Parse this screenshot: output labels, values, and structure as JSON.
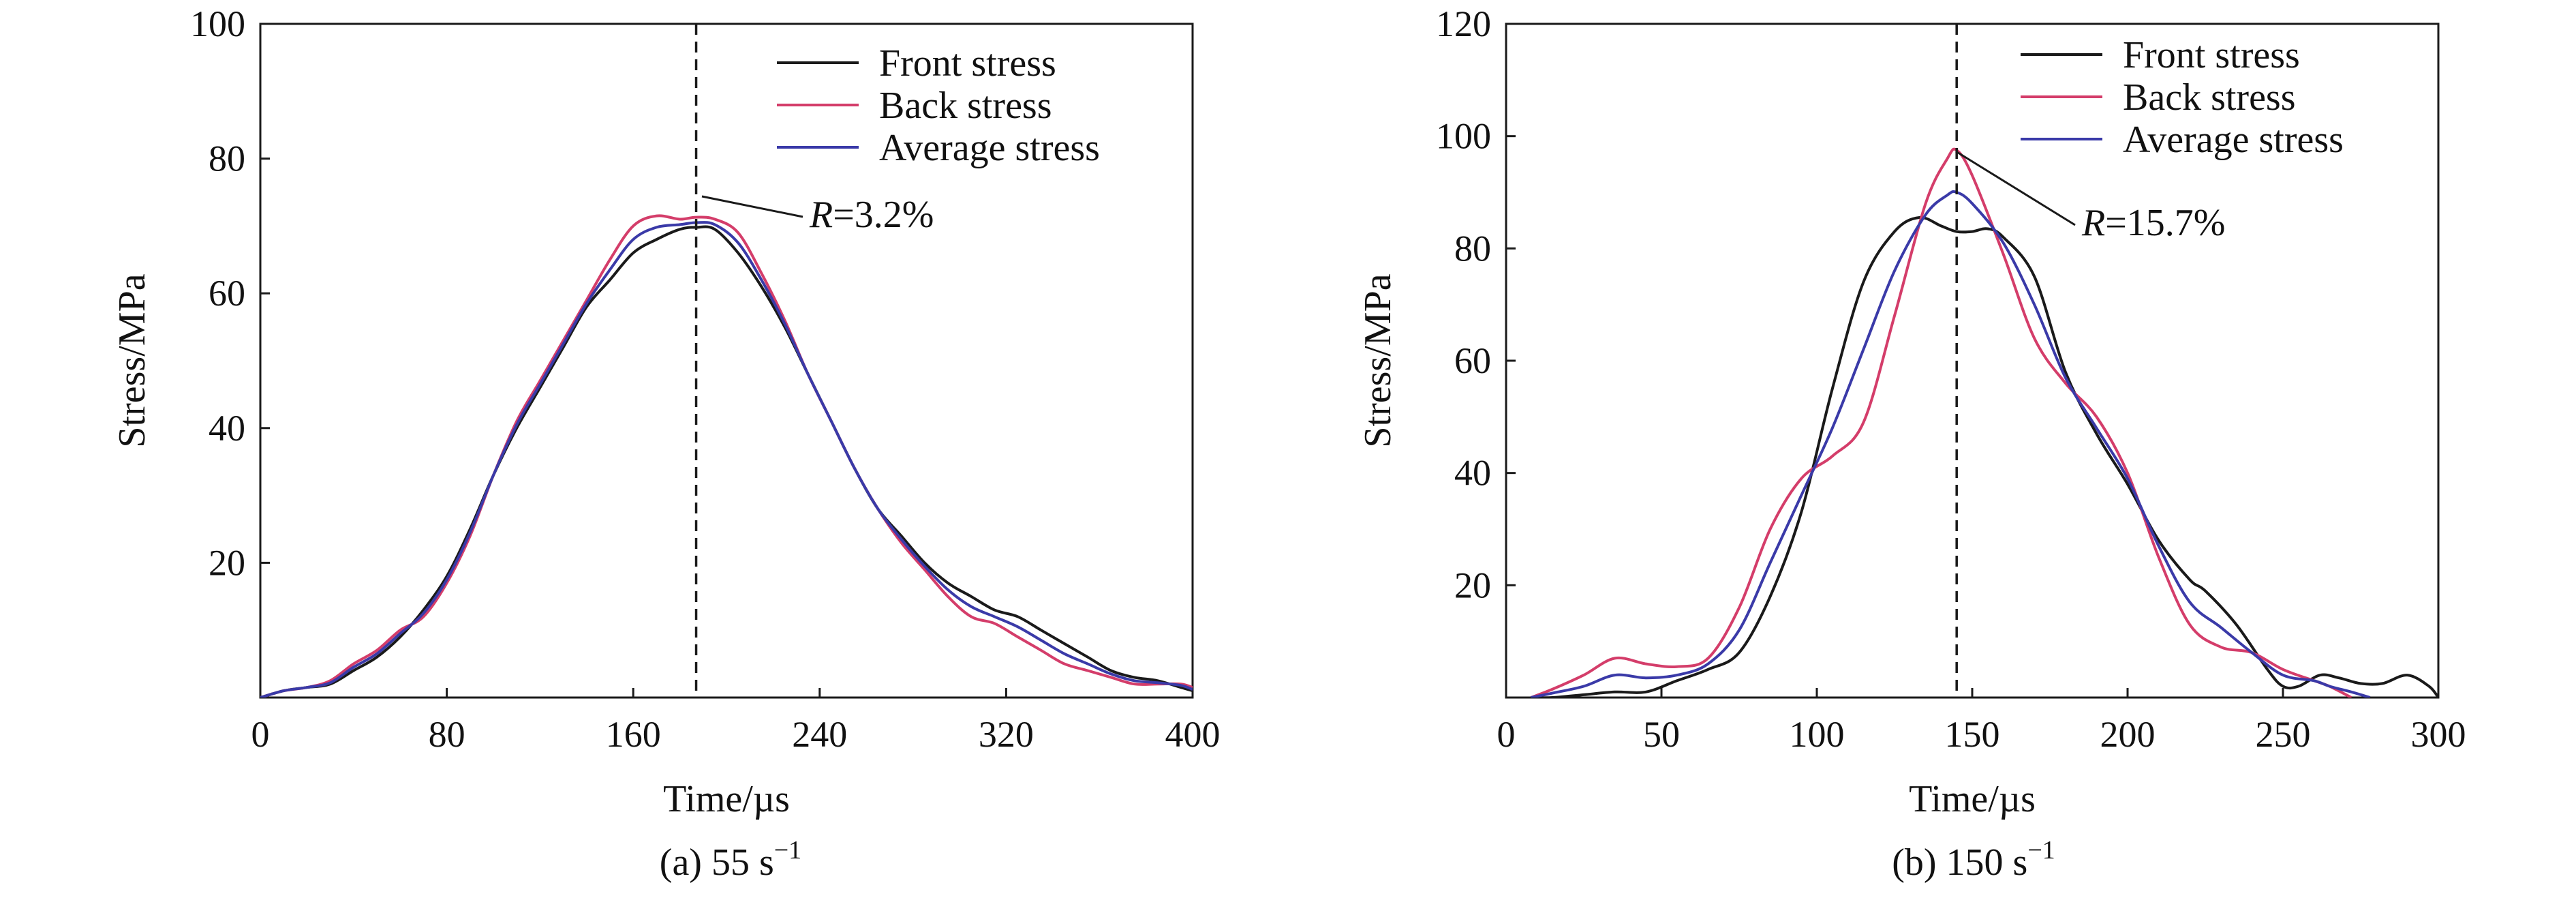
{
  "chart_data": [
    {
      "type": "line",
      "caption": "(a) 55 s",
      "caption_sup": "−1",
      "xlabel": "Time/µs",
      "ylabel": "Stress/MPa",
      "xlim": [
        0,
        400
      ],
      "ylim": [
        0,
        100
      ],
      "xticks": [
        0,
        80,
        160,
        240,
        320,
        400
      ],
      "yticks": [
        20,
        40,
        60,
        80,
        100
      ],
      "marker_x": 187,
      "annotation": {
        "italic": "R",
        "text": "=3.2%"
      },
      "legend_position": "top-right",
      "series": [
        {
          "name": "Front stress",
          "color": "#1a1a1a",
          "x": [
            0,
            10,
            20,
            30,
            40,
            50,
            60,
            70,
            80,
            90,
            100,
            110,
            120,
            130,
            140,
            150,
            160,
            170,
            180,
            187,
            195,
            205,
            215,
            225,
            235,
            245,
            255,
            265,
            275,
            285,
            295,
            305,
            315,
            325,
            335,
            345,
            355,
            365,
            375,
            385,
            395,
            400
          ],
          "y": [
            0,
            1,
            1.5,
            2,
            4,
            6,
            9,
            13,
            18,
            25,
            33,
            40,
            46,
            52,
            58,
            62,
            66,
            68,
            69.5,
            69.8,
            69.5,
            66,
            61,
            55,
            48,
            41,
            34,
            28,
            24,
            20,
            17,
            15,
            13,
            12,
            10,
            8,
            6,
            4,
            3,
            2.5,
            1.5,
            1
          ]
        },
        {
          "name": "Back stress",
          "color": "#d43d6a",
          "x": [
            0,
            10,
            20,
            30,
            40,
            50,
            60,
            70,
            80,
            90,
            100,
            110,
            120,
            130,
            140,
            150,
            160,
            170,
            180,
            187,
            195,
            205,
            215,
            225,
            235,
            245,
            255,
            265,
            275,
            285,
            295,
            305,
            315,
            325,
            335,
            345,
            355,
            365,
            375,
            385,
            395,
            400
          ],
          "y": [
            0,
            1,
            1.5,
            2.5,
            5,
            7,
            10,
            12,
            17,
            24,
            33,
            41,
            47,
            53,
            59,
            65,
            70,
            71.5,
            71,
            71.3,
            71,
            69,
            63,
            56,
            48,
            41,
            34,
            28,
            23,
            19,
            15,
            12,
            11,
            9,
            7,
            5,
            4,
            3,
            2,
            2,
            2,
            1.5
          ]
        },
        {
          "name": "Average stress",
          "color": "#3a3aa8",
          "x": [
            0,
            10,
            20,
            30,
            40,
            50,
            60,
            70,
            80,
            90,
            100,
            110,
            120,
            130,
            140,
            150,
            160,
            170,
            180,
            187,
            195,
            205,
            215,
            225,
            235,
            245,
            255,
            265,
            275,
            285,
            295,
            305,
            315,
            325,
            335,
            345,
            355,
            365,
            375,
            385,
            395,
            400
          ],
          "y": [
            0,
            1,
            1.5,
            2.2,
            4.5,
            6.5,
            9.5,
            12.5,
            17.5,
            24.5,
            33,
            40.5,
            46.5,
            52.5,
            58.5,
            63.5,
            68,
            69.8,
            70.2,
            70.5,
            70.2,
            67.5,
            62,
            55.5,
            48,
            41,
            34,
            28,
            23.5,
            19.5,
            16,
            13.5,
            12,
            10.5,
            8.5,
            6.5,
            5,
            3.5,
            2.5,
            2.2,
            1.8,
            1.2
          ]
        }
      ]
    },
    {
      "type": "line",
      "caption": "(b) 150 s",
      "caption_sup": "−1",
      "xlabel": "Time/µs",
      "ylabel": "Stress/MPa",
      "xlim": [
        0,
        300
      ],
      "ylim": [
        0,
        120
      ],
      "xticks": [
        0,
        50,
        100,
        150,
        200,
        250,
        300
      ],
      "yticks": [
        20,
        40,
        60,
        80,
        100,
        120
      ],
      "marker_x": 145,
      "annotation": {
        "italic": "R",
        "text": "=15.7%"
      },
      "legend_position": "top-right",
      "series": [
        {
          "name": "Front stress",
          "color": "#1a1a1a",
          "x": [
            8,
            15,
            25,
            35,
            45,
            55,
            65,
            75,
            85,
            95,
            105,
            115,
            125,
            133,
            140,
            145,
            150,
            155,
            160,
            170,
            180,
            190,
            200,
            210,
            220,
            225,
            235,
            245,
            250,
            255,
            262,
            268,
            275,
            282,
            290,
            297,
            300
          ],
          "y": [
            0,
            0,
            0.5,
            1,
            1,
            3,
            5,
            8,
            18,
            33,
            55,
            74,
            83,
            85.5,
            84,
            83,
            83,
            83.5,
            82,
            75,
            58,
            47,
            38,
            28,
            21,
            19,
            13,
            5,
            2,
            2,
            4,
            3.5,
            2.5,
            2.5,
            4,
            2,
            0
          ]
        },
        {
          "name": "Back stress",
          "color": "#d43d6a",
          "x": [
            8,
            15,
            25,
            35,
            45,
            55,
            65,
            75,
            85,
            95,
            105,
            115,
            125,
            135,
            142,
            145,
            150,
            160,
            170,
            180,
            190,
            200,
            210,
            220,
            230,
            240,
            250,
            260,
            265,
            272
          ],
          "y": [
            0,
            1.5,
            4,
            7,
            6,
            5.5,
            7,
            16,
            30,
            39,
            43,
            49,
            68,
            88,
            96,
            97.5,
            93,
            79,
            64,
            56,
            50,
            40,
            25,
            13,
            9,
            8,
            5,
            3,
            2,
            0
          ]
        },
        {
          "name": "Average stress",
          "color": "#3a3aa8",
          "x": [
            8,
            15,
            25,
            35,
            45,
            55,
            65,
            75,
            85,
            95,
            105,
            115,
            125,
            135,
            142,
            145,
            150,
            160,
            170,
            180,
            190,
            200,
            210,
            220,
            230,
            240,
            250,
            260,
            265,
            272,
            278
          ],
          "y": [
            0,
            0.8,
            2,
            4,
            3.5,
            4,
            6,
            12,
            24,
            36,
            48,
            62,
            76,
            86,
            89.5,
            90,
            88,
            81,
            70,
            57,
            48,
            39,
            27,
            17,
            12.5,
            8,
            4,
            3,
            2,
            1,
            0
          ]
        }
      ]
    }
  ]
}
